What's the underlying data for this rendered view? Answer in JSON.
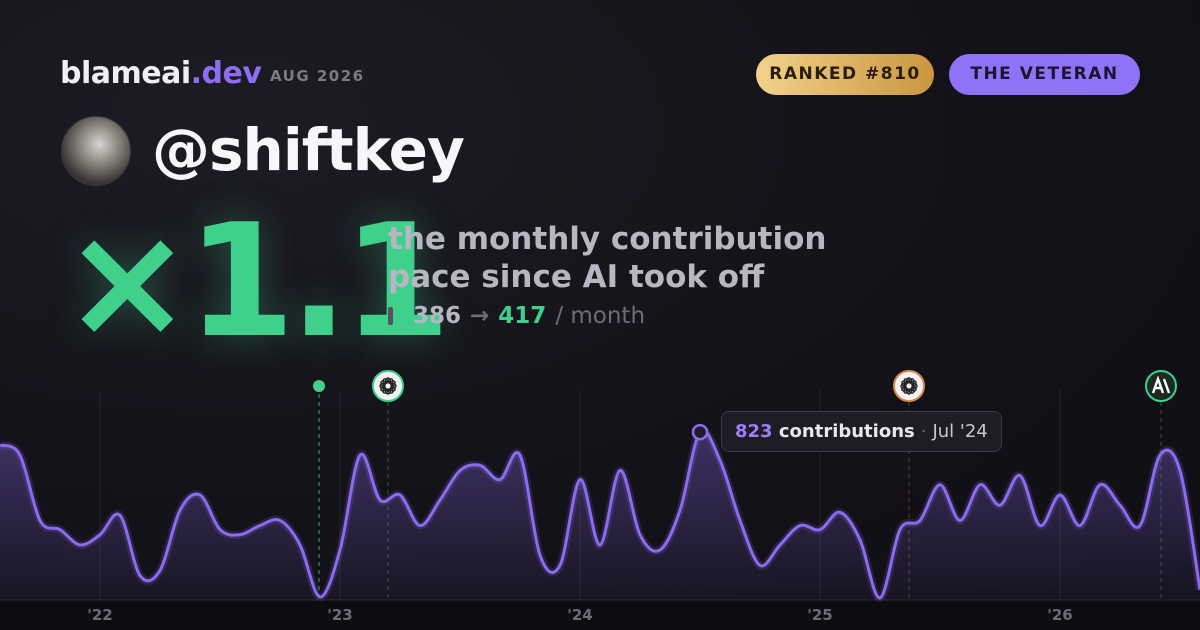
{
  "header": {
    "brand": "blameai",
    "brand_suffix": ".dev",
    "date": "AUG 2026"
  },
  "badges": [
    "RANKED #810",
    "THE VETERAN"
  ],
  "profile": {
    "handle": "@shiftkey"
  },
  "pace": {
    "multiplier": "×1.1",
    "caption_line1": "the monthly contribution",
    "caption_line2": "pace since AI took off",
    "before": 386,
    "arrow": "→",
    "after": 417,
    "unit": "/ month"
  },
  "tooltip": {
    "label": "contributions",
    "separator": "·",
    "date": "Jul '24"
  },
  "chart_data": {
    "type": "area",
    "color": "#8b6cf0",
    "categories": [
      null,
      null,
      null,
      null,
      null,
      "'22",
      null,
      null,
      null,
      null,
      null,
      null,
      null,
      null,
      null,
      null,
      null,
      "'23",
      null,
      null,
      null,
      null,
      null,
      null,
      null,
      null,
      null,
      null,
      null,
      "'24",
      null,
      null,
      null,
      null,
      null,
      null,
      null,
      null,
      null,
      null,
      null,
      "'25",
      null,
      null,
      null,
      null,
      null,
      null,
      null,
      null,
      null,
      null,
      null,
      "'26",
      null,
      null,
      null,
      null,
      null,
      null,
      null
    ],
    "values": [
      760,
      710,
      390,
      345,
      270,
      320,
      415,
      120,
      145,
      440,
      515,
      345,
      320,
      365,
      390,
      270,
      15,
      245,
      710,
      490,
      515,
      365,
      490,
      635,
      660,
      590,
      710,
      220,
      170,
      590,
      270,
      635,
      320,
      245,
      440,
      823,
      685,
      390,
      170,
      270,
      365,
      345,
      430,
      295,
      10,
      345,
      390,
      565,
      390,
      565,
      465,
      610,
      365,
      515,
      365,
      565,
      465,
      365,
      710,
      635,
      50
    ],
    "ylim": [
      0,
      1000
    ]
  }
}
